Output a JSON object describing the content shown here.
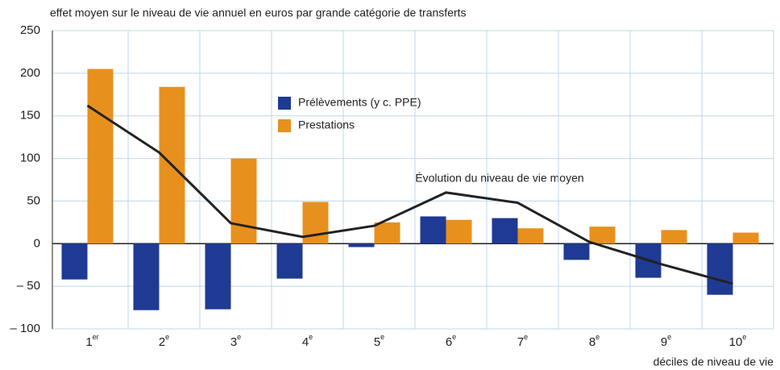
{
  "chart_data": {
    "type": "bar",
    "title": "effet moyen sur le niveau de vie annuel en euros par grande catégorie de transferts",
    "x_label": "déciles de niveau de vie",
    "categories": [
      "1er",
      "2e",
      "3e",
      "4e",
      "5e",
      "6e",
      "7e",
      "8e",
      "9e",
      "10e"
    ],
    "series": [
      {
        "name": "Prélèvements (y c. PPE)",
        "color": "#1f3a93",
        "values": [
          -42,
          -78,
          -77,
          -41,
          -4,
          32,
          30,
          -19,
          -40,
          -60
        ]
      },
      {
        "name": "Prestations",
        "color": "#e8901e",
        "values": [
          205,
          184,
          100,
          49,
          25,
          28,
          18,
          20,
          16,
          13
        ]
      }
    ],
    "line": {
      "color": "#222222",
      "values": [
        162,
        107,
        24,
        8,
        21,
        60,
        48,
        2,
        -24,
        -47
      ]
    },
    "annotation": "Évolution du niveau de vie moyen",
    "ylim": [
      -100,
      250
    ],
    "yticks": [
      {
        "value": -100,
        "label": "– 100"
      },
      {
        "value": -50,
        "label": "– 50"
      },
      0,
      50,
      100,
      150,
      200,
      250
    ],
    "grid": true
  }
}
